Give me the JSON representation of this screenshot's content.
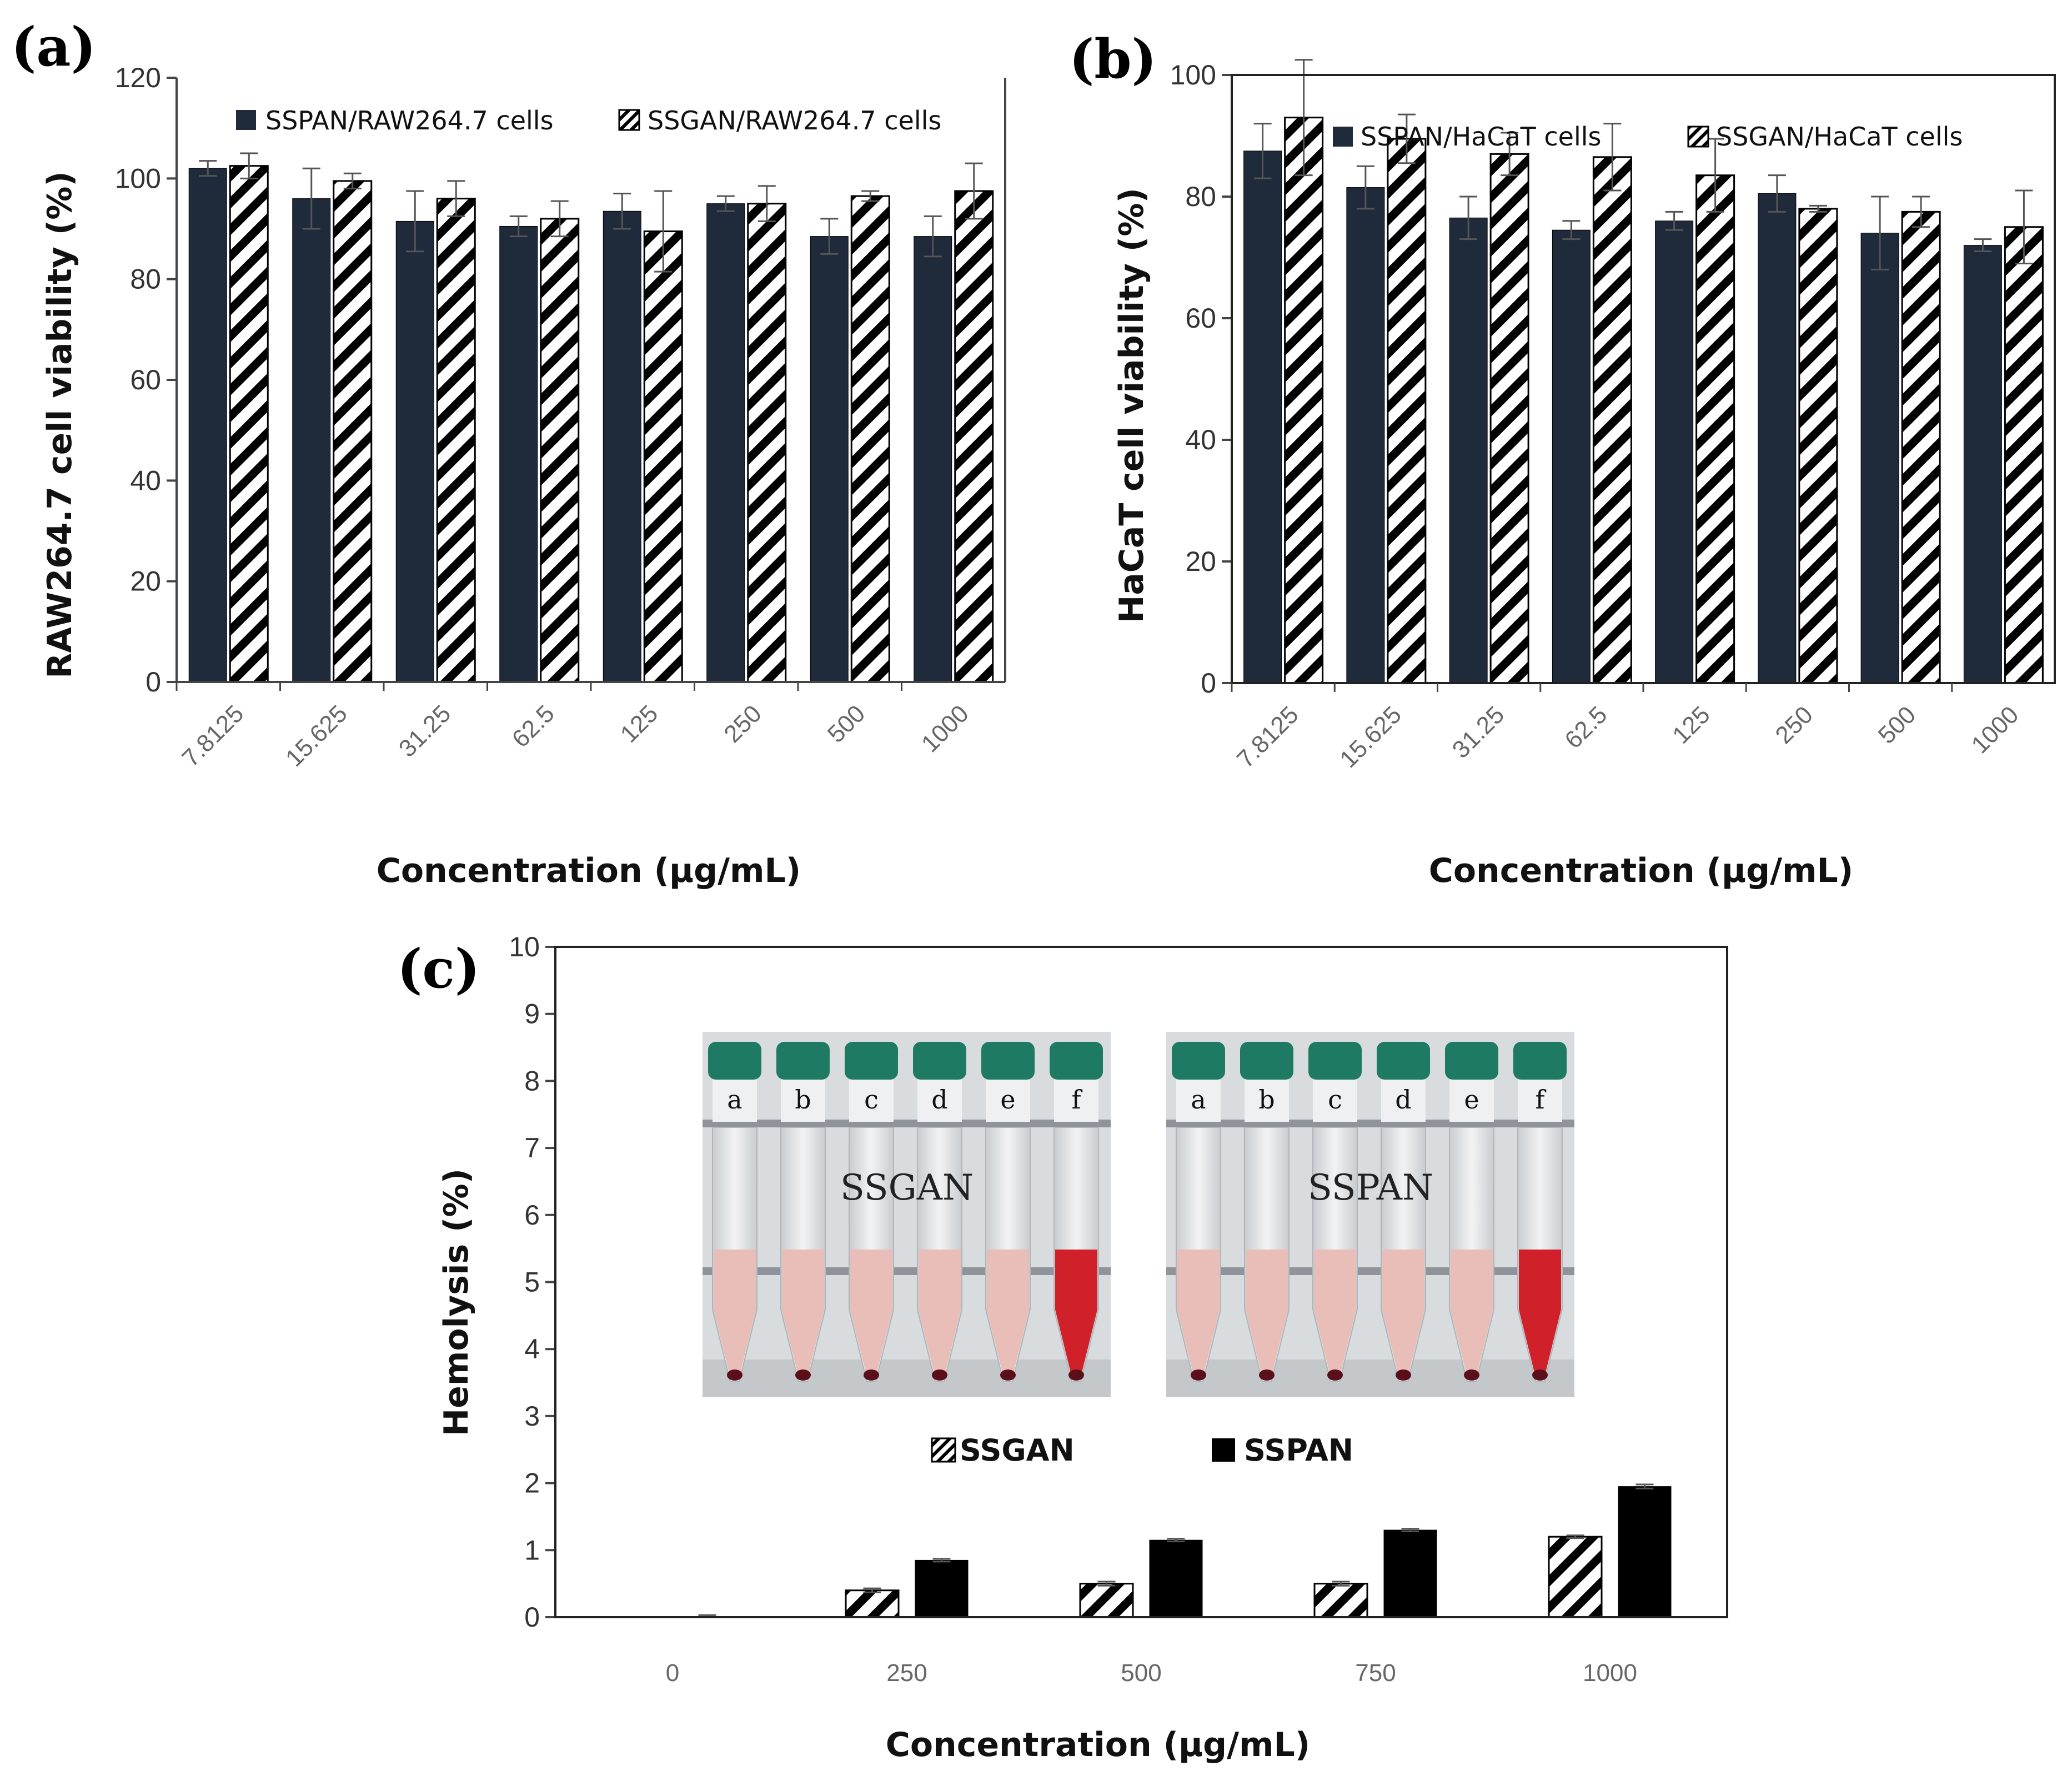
{
  "colors": {
    "dark_bar": "#1f2a3a",
    "black_bar": "#000000",
    "hatch_line": "#000000",
    "tube_cap": "#1e7a62",
    "blood_red": "#d0202a",
    "pink_fluid": "#e9bdb8",
    "photo_bg": "#d9dcde"
  },
  "chart_data": [
    {
      "panel": "(a)",
      "type": "bar",
      "title": "",
      "xlabel": "Concentration (μg/mL)",
      "ylabel": "RAW264.7 cell viability (%)",
      "ylim": [
        0,
        120
      ],
      "yticks": [
        "0",
        "20",
        "40",
        "60",
        "80",
        "100",
        "120"
      ],
      "categories": [
        "7.8125",
        "15.625",
        "31.25",
        "62.5",
        "125",
        "250",
        "500",
        "1000"
      ],
      "legend_position": "top",
      "series": [
        {
          "name": "SSPAN/RAW264.7 cells",
          "style": "solid",
          "values": [
            102,
            96,
            91.5,
            90.5,
            93.5,
            95,
            88.5,
            88.5
          ],
          "errors": [
            1.5,
            6,
            6,
            2,
            3.5,
            1.5,
            3.5,
            4
          ]
        },
        {
          "name": "SSGAN/RAW264.7 cells",
          "style": "hatched",
          "values": [
            102.5,
            99.5,
            96,
            92,
            89.5,
            95,
            96.5,
            97.5
          ],
          "errors": [
            2.5,
            1.5,
            3.5,
            3.5,
            8,
            3.5,
            1,
            5.5
          ]
        }
      ]
    },
    {
      "panel": "(b)",
      "type": "bar",
      "title": "",
      "xlabel": "Concentration (μg/mL)",
      "ylabel": "HaCaT cell viability (%)",
      "ylim": [
        0,
        100
      ],
      "yticks": [
        "0",
        "20",
        "40",
        "60",
        "80",
        "100"
      ],
      "categories": [
        "7.8125",
        "15.625",
        "31.25",
        "62.5",
        "125",
        "250",
        "500",
        "1000"
      ],
      "legend_position": "top",
      "series": [
        {
          "name": "SSPAN/HaCaT cells",
          "style": "solid",
          "values": [
            87.5,
            81.5,
            76.5,
            74.5,
            76,
            80.5,
            74,
            72
          ],
          "errors": [
            4.5,
            3.5,
            3.5,
            1.5,
            1.5,
            3,
            6,
            1
          ]
        },
        {
          "name": "SSGAN/HaCaT cells",
          "style": "hatched",
          "values": [
            93,
            89.5,
            87,
            86.5,
            83.5,
            78,
            77.5,
            75
          ],
          "errors": [
            9.5,
            4,
            3.5,
            5.5,
            6,
            0.5,
            2.5,
            6
          ]
        }
      ]
    },
    {
      "panel": "(c)",
      "type": "bar",
      "title": "",
      "xlabel": "Concentration (μg/mL)",
      "ylabel": "Hemolysis (%)",
      "ylim": [
        0,
        10
      ],
      "yticks": [
        "0",
        "1",
        "2",
        "3",
        "4",
        "5",
        "6",
        "7",
        "8",
        "9",
        "10"
      ],
      "categories": [
        "0",
        "250",
        "500",
        "750",
        "1000"
      ],
      "legend_position": "center",
      "series": [
        {
          "name": "SSGAN",
          "style": "hatched",
          "values": [
            0,
            0.4,
            0.5,
            0.5,
            1.2
          ],
          "errors": [
            0,
            0.03,
            0.03,
            0.03,
            0.02
          ]
        },
        {
          "name": "SSPAN",
          "style": "solid",
          "values": [
            0,
            0.85,
            1.15,
            1.3,
            1.95
          ],
          "errors": [
            0.03,
            0.02,
            0.02,
            0.02,
            0.03
          ]
        }
      ],
      "inset_photos": [
        {
          "label": "SSGAN",
          "tubes": [
            "a",
            "b",
            "c",
            "d",
            "e",
            "f"
          ]
        },
        {
          "label": "SSPAN",
          "tubes": [
            "a",
            "b",
            "c",
            "d",
            "e",
            "f"
          ]
        }
      ]
    }
  ]
}
